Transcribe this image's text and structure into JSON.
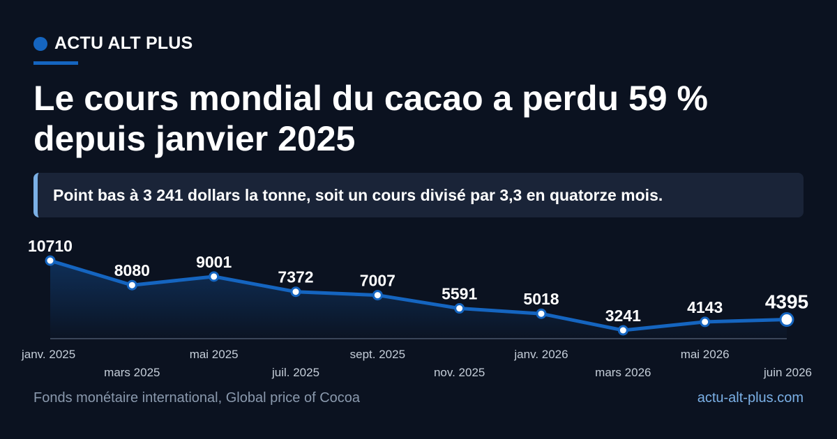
{
  "brand": {
    "name": "ACTU ALT PLUS",
    "accent": "#1565c0"
  },
  "title": "Le cours mondial du cacao a perdu 59 % depuis janvier 2025",
  "callout": "Point bas à 3 241 dollars la tonne, soit un cours divisé par 3,3 en quatorze mois.",
  "chart_data": {
    "type": "line",
    "title": "",
    "xlabel": "",
    "ylabel": "",
    "categories": [
      "janv. 2025",
      "mars 2025",
      "mai 2025",
      "juil. 2025",
      "sept. 2025",
      "nov. 2025",
      "janv. 2026",
      "mars 2026",
      "mai 2026",
      "juin 2026"
    ],
    "series": [
      {
        "values": [
          10710,
          8080,
          9001,
          7372,
          7007,
          5591,
          5018,
          3241,
          4143,
          4395
        ]
      }
    ],
    "data_labels": [
      "10710",
      "8080",
      "9001",
      "7372",
      "7007",
      "5591",
      "5018",
      "3241",
      "4143",
      "4395"
    ],
    "ylim": [
      2000,
      11000
    ],
    "grid": false,
    "legend": "none",
    "line_color": "#1565c0",
    "highlight_last": true
  },
  "footer": {
    "source": "Fonds monétaire international, Global price of Cocoa",
    "site": "actu-alt-plus.com"
  }
}
